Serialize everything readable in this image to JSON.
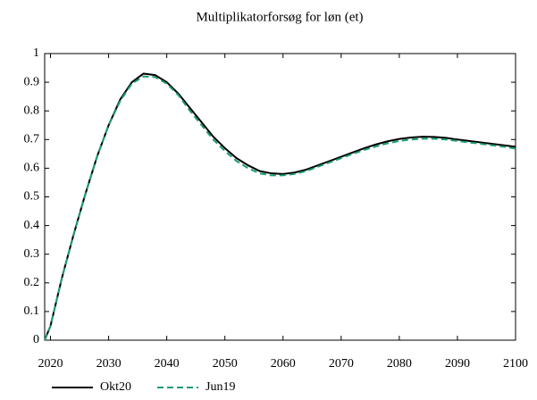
{
  "chart_data": {
    "type": "line",
    "title": "Multiplikatorforsøg for løn (et)",
    "x": [
      2019,
      2020,
      2022,
      2024,
      2026,
      2028,
      2030,
      2032,
      2034,
      2036,
      2038,
      2040,
      2042,
      2044,
      2046,
      2048,
      2050,
      2052,
      2054,
      2056,
      2058,
      2060,
      2062,
      2064,
      2066,
      2068,
      2070,
      2072,
      2074,
      2076,
      2078,
      2080,
      2082,
      2084,
      2086,
      2088,
      2090,
      2092,
      2094,
      2096,
      2098,
      2100
    ],
    "series": [
      {
        "name": "Okt20",
        "color": "#000000",
        "style": "solid",
        "values": [
          0,
          0.05,
          0.22,
          0.37,
          0.51,
          0.64,
          0.75,
          0.84,
          0.9,
          0.93,
          0.925,
          0.9,
          0.86,
          0.81,
          0.76,
          0.71,
          0.67,
          0.635,
          0.61,
          0.59,
          0.582,
          0.58,
          0.585,
          0.595,
          0.61,
          0.625,
          0.64,
          0.655,
          0.67,
          0.683,
          0.694,
          0.702,
          0.707,
          0.71,
          0.709,
          0.706,
          0.7,
          0.695,
          0.69,
          0.685,
          0.68,
          0.675
        ]
      },
      {
        "name": "Jun19",
        "color": "#1a9e6e",
        "style": "dashed",
        "values": [
          0,
          0.05,
          0.22,
          0.37,
          0.51,
          0.64,
          0.75,
          0.835,
          0.895,
          0.92,
          0.918,
          0.895,
          0.855,
          0.8,
          0.75,
          0.7,
          0.66,
          0.625,
          0.6,
          0.582,
          0.575,
          0.575,
          0.58,
          0.59,
          0.605,
          0.62,
          0.635,
          0.65,
          0.664,
          0.676,
          0.687,
          0.695,
          0.7,
          0.703,
          0.703,
          0.7,
          0.695,
          0.69,
          0.685,
          0.68,
          0.675,
          0.668
        ]
      }
    ],
    "xlim": [
      2019,
      2100
    ],
    "xticks": [
      2020,
      2030,
      2040,
      2050,
      2060,
      2070,
      2080,
      2090,
      2100
    ],
    "ylim": [
      0,
      1
    ],
    "yticks": [
      0,
      0.1,
      0.2,
      0.3,
      0.4,
      0.5,
      0.6,
      0.7,
      0.8,
      0.9,
      1
    ],
    "grid": false,
    "legend": "bottom-left"
  }
}
